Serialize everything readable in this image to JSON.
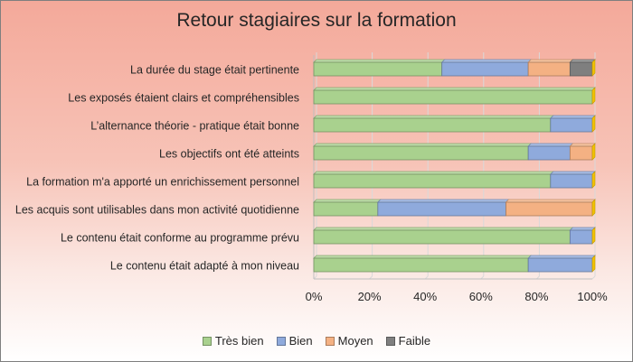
{
  "chart_data": {
    "type": "bar",
    "orientation": "horizontal",
    "stacked": "percent",
    "title": "Retour stagiaires sur la formation",
    "categories": [
      "La durée du stage était pertinente",
      "Les exposés étaient clairs et compréhensibles",
      "L’alternance théorie - pratique était bonne",
      "Les objectifs ont été atteints",
      "La formation m'a apporté un enrichissement personnel",
      "Les acquis sont utilisables dans mon activité quotidienne",
      "Le contenu était conforme au programme prévu",
      "Le contenu était adapté à mon niveau"
    ],
    "series": [
      {
        "name": "Très bien",
        "color": "#a9d18e",
        "values": [
          46,
          100,
          85,
          77,
          85,
          23,
          92,
          77
        ]
      },
      {
        "name": "Bien",
        "color": "#8faadc",
        "values": [
          31,
          0,
          15,
          15,
          15,
          46,
          8,
          23
        ]
      },
      {
        "name": "Moyen",
        "color": "#f4b183",
        "values": [
          15,
          0,
          0,
          8,
          0,
          31,
          0,
          0
        ]
      },
      {
        "name": "Faible",
        "color": "#7f7f7f",
        "values": [
          8,
          0,
          0,
          0,
          0,
          0,
          0,
          0
        ]
      }
    ],
    "xlim": [
      0,
      100
    ],
    "x_ticks": [
      "0%",
      "20%",
      "40%",
      "60%",
      "80%",
      "100%"
    ],
    "grid": true,
    "legend_position": "bottom"
  }
}
